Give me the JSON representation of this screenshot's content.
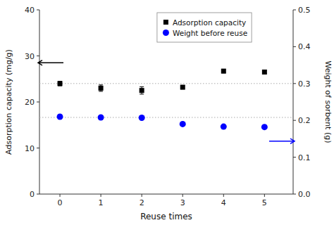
{
  "chart_data": {
    "type": "scatter",
    "x_label": "Reuse times",
    "y_label": "Adsorption capacity (mg/g)",
    "y2_label": "Weight of sorbent (g)",
    "x": [
      0,
      1,
      2,
      3,
      4,
      5
    ],
    "xlim": [
      -0.5,
      5.7
    ],
    "xticks": [
      0,
      1,
      2,
      3,
      4,
      5
    ],
    "ylim": [
      0,
      40
    ],
    "yticks": [
      0,
      10,
      20,
      30,
      40
    ],
    "y2lim": [
      0.0,
      0.5
    ],
    "y2ticks": [
      {
        "value": 0.0,
        "label": "0.0"
      },
      0.1,
      0.2,
      0.3,
      0.4,
      0.5
    ],
    "grid": false,
    "legend": "top",
    "series": [
      {
        "name": "Adsorption capacity",
        "color": "black",
        "marker": "square",
        "values": [
          24.0,
          23.0,
          22.5,
          23.2,
          26.7,
          26.5
        ],
        "errors": [
          0.5,
          0.7,
          0.8,
          0.4,
          0.4,
          0.4
        ]
      },
      {
        "name": "Weight before reuse",
        "color": "blue",
        "marker": "circle",
        "axis": "y2",
        "values": [
          0.21,
          0.208,
          0.207,
          0.19,
          0.183,
          0.182
        ],
        "errors": [
          0.005,
          0.004,
          0.004,
          0.004,
          0.004,
          0.004
        ]
      }
    ],
    "reference_lines": [
      {
        "value": 24.0,
        "color": "#aaaaaa",
        "line_style": "dotted"
      },
      {
        "value": 0.208,
        "axis": "y2",
        "color": "#aaaaaa",
        "line_style": "dotted"
      }
    ],
    "arrows": [
      {
        "y": 28.5,
        "direction": "left",
        "color": "black"
      },
      {
        "y": 11.5,
        "direction": "right",
        "color": "blue"
      }
    ]
  }
}
